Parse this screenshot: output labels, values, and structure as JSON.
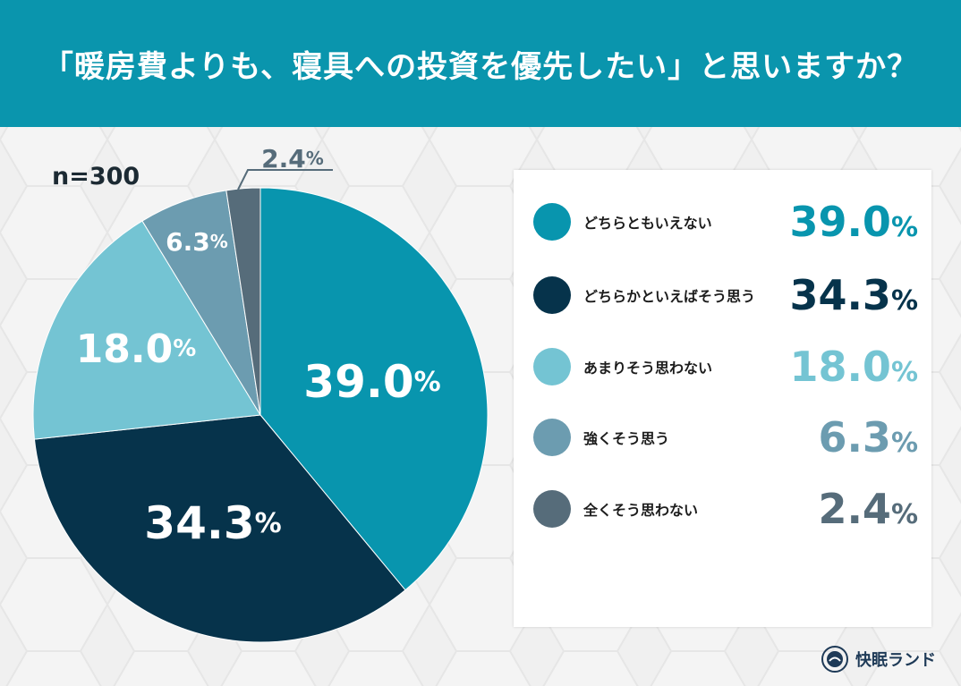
{
  "title": "「暖房費よりも、寝具への投資を優先したい」と思いますか？",
  "sample_size": "n=300",
  "brand": "快眠ランド",
  "chart_data": {
    "type": "pie",
    "title": "「暖房費よりも、寝具への投資を優先したい」と思いますか？",
    "categories": [
      "どちらともいえない",
      "どちらかといえばそう思う",
      "あまりそう思わない",
      "強くそう思う",
      "全くそう思わない"
    ],
    "values": [
      39.0,
      34.3,
      18.0,
      6.3,
      2.4
    ],
    "labels": [
      "39.0",
      "34.3",
      "18.0",
      "6.3",
      "2.4"
    ],
    "unit": "%",
    "colors": [
      "#0895ae",
      "#06334b",
      "#74c4d3",
      "#6c9cb0",
      "#566c7a"
    ],
    "legend_placement": "right"
  },
  "legend": [
    {
      "label": "どちらともいえない",
      "value": "39.0",
      "unit": "%"
    },
    {
      "label": "どちらかといえばそう思う",
      "value": "34.3",
      "unit": "%"
    },
    {
      "label": "あまりそう思わない",
      "value": "18.0",
      "unit": "%"
    },
    {
      "label": "強くそう思う",
      "value": "6.3",
      "unit": "%"
    },
    {
      "label": "全くそう思わない",
      "value": "2.4",
      "unit": "%"
    }
  ]
}
